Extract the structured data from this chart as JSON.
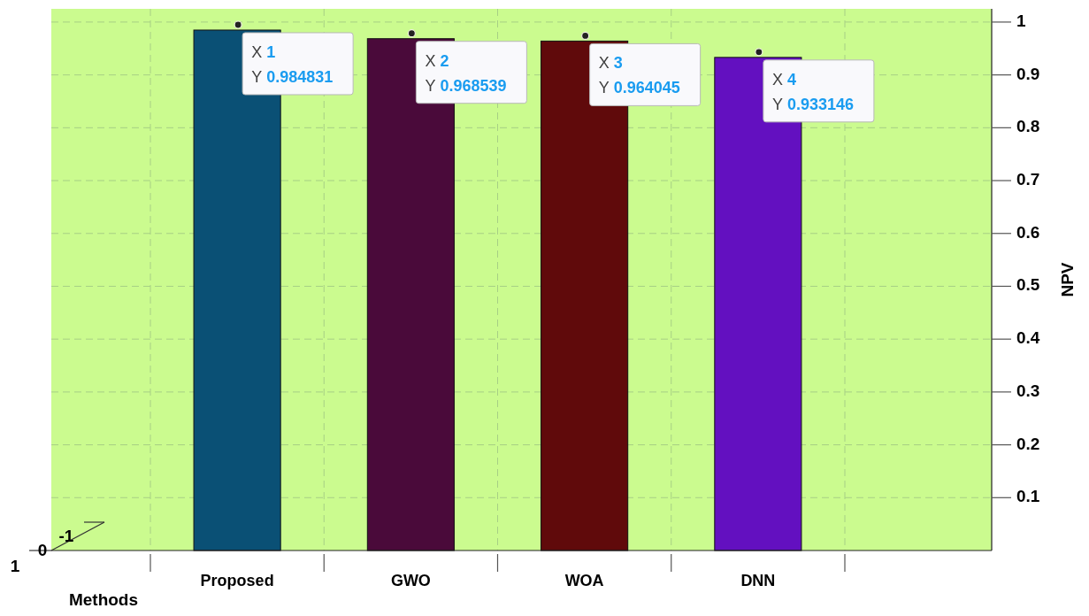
{
  "chart_data": {
    "type": "bar",
    "xlabel": "Methods",
    "ylabel": "NPV",
    "categories": [
      "Proposed",
      "GWO",
      "WOA",
      "DNN"
    ],
    "values": [
      0.984831,
      0.968539,
      0.964045,
      0.933146
    ],
    "colors": [
      "#0a5075",
      "#4a0a3a",
      "#600a0b",
      "#6310c0"
    ],
    "value_labels": [
      "X 1\nY 0.984831",
      "X 2\nY 0.968539",
      "X 3\nY 0.964045",
      "X 4\nY 0.933146"
    ],
    "ylim": [
      0,
      1.025
    ],
    "yticks": [
      0.1,
      0.2,
      0.3,
      0.4,
      0.5,
      0.6,
      0.7,
      0.8,
      0.9,
      1
    ],
    "grid": true,
    "annotations": [
      "-1",
      "0",
      "1"
    ]
  }
}
